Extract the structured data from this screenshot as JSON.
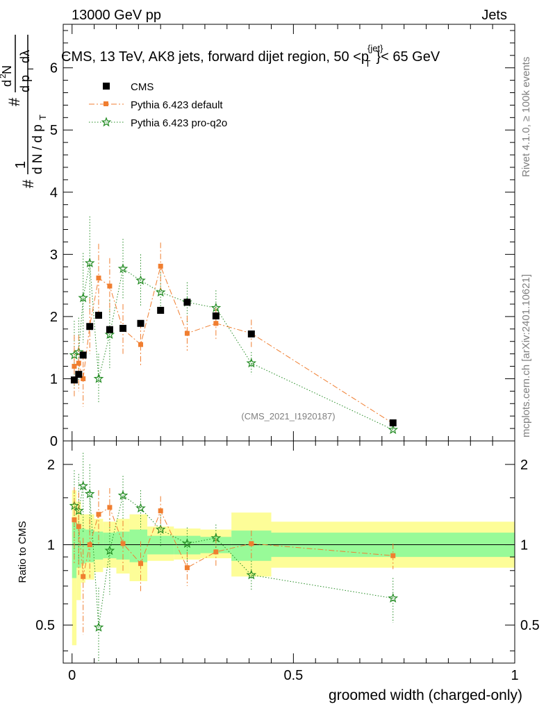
{
  "header": {
    "energy_label": "13000 GeV pp",
    "category_label": "Jets"
  },
  "side_text": {
    "rivet": "Rivet 4.1.0, ≥ 100k events",
    "mcplots": "mcplots.cern.ch [arXiv:2401.10621]"
  },
  "colors": {
    "cms": "#000000",
    "pythia_default": "#f07e30",
    "pythia_proq2o": "#228b22",
    "band_inner": "#98fa98",
    "band_outer": "#fdfd98"
  },
  "chart_data": [
    {
      "type": "scatter",
      "panel": "main",
      "title": "CMS, 13 TeV, AK8 jets, forward dijet region, 50 <p_T^{jet}< 65 GeV",
      "ylabel": "1/(dN/dp_T) d²N/(dp_T dλ)",
      "watermark": "(CMS_2021_I1920187)",
      "xlim": [
        -0.02,
        1.0
      ],
      "ylim": [
        0,
        6.7
      ],
      "yticks": [
        0,
        1,
        2,
        3,
        4,
        5,
        6
      ],
      "ytick_labels": [
        "0",
        "1",
        "2",
        "3",
        "4",
        "5",
        "6"
      ],
      "legend_position": "top-left",
      "x": [
        0.005,
        0.015,
        0.025,
        0.04,
        0.06,
        0.085,
        0.115,
        0.155,
        0.2,
        0.26,
        0.325,
        0.405,
        0.725
      ],
      "series": [
        {
          "name": "CMS",
          "marker": "square",
          "values": [
            0.98,
            1.07,
            1.38,
            1.84,
            2.02,
            1.79,
            1.81,
            1.89,
            2.1,
            2.23,
            2.01,
            1.72,
            0.29
          ],
          "errors": [
            0.03,
            0.03,
            0.03,
            0.04,
            0.04,
            0.03,
            0.03,
            0.03,
            0.03,
            0.03,
            0.03,
            0.03,
            0.01
          ]
        },
        {
          "name": "Pythia 6.423 default",
          "marker": "square-small",
          "line": "dashdot",
          "values": [
            1.2,
            1.25,
            1.0,
            1.85,
            2.62,
            2.49,
            1.8,
            1.55,
            2.81,
            1.73,
            1.89,
            1.73,
            0.28
          ],
          "errors": [
            0.5,
            0.45,
            0.45,
            0.45,
            0.55,
            0.45,
            0.4,
            0.35,
            0.38,
            0.28,
            0.25,
            0.22,
            0.03
          ]
        },
        {
          "name": "Pythia 6.423 pro-q2o",
          "marker": "star",
          "line": "dotted",
          "values": [
            1.38,
            1.43,
            2.3,
            2.86,
            1.0,
            1.71,
            2.77,
            2.58,
            2.39,
            2.23,
            2.14,
            1.25,
            0.18
          ],
          "errors": [
            0.55,
            0.55,
            0.72,
            0.75,
            0.4,
            0.55,
            0.48,
            0.42,
            0.33,
            0.32,
            0.28,
            0.18,
            0.03
          ]
        }
      ]
    },
    {
      "type": "scatter",
      "panel": "ratio",
      "ylabel": "Ratio to CMS",
      "xlabel": "groomed width (charged-only)",
      "xlim": [
        -0.02,
        1.0
      ],
      "ylim": [
        0.36,
        2.45
      ],
      "log_y": true,
      "xticks": [
        0,
        0.5,
        1
      ],
      "xtick_labels": [
        "0",
        "0.5",
        "1"
      ],
      "yticks": [
        0.5,
        1,
        2
      ],
      "ytick_labels": [
        "0.5",
        "1",
        "2"
      ],
      "bins": [
        {
          "lo": 0.0,
          "hi": 0.01,
          "inner": [
            0.75,
            1.25
          ],
          "outer": [
            0.42,
            1.6
          ]
        },
        {
          "lo": 0.01,
          "hi": 0.02,
          "inner": [
            0.82,
            1.2
          ],
          "outer": [
            0.62,
            1.45
          ]
        },
        {
          "lo": 0.02,
          "hi": 0.03,
          "inner": [
            0.85,
            1.15
          ],
          "outer": [
            0.72,
            1.3
          ]
        },
        {
          "lo": 0.03,
          "hi": 0.05,
          "inner": [
            0.86,
            1.14
          ],
          "outer": [
            0.74,
            1.3
          ]
        },
        {
          "lo": 0.05,
          "hi": 0.07,
          "inner": [
            0.88,
            1.12
          ],
          "outer": [
            0.79,
            1.25
          ]
        },
        {
          "lo": 0.07,
          "hi": 0.1,
          "inner": [
            0.89,
            1.11
          ],
          "outer": [
            0.82,
            1.22
          ]
        },
        {
          "lo": 0.1,
          "hi": 0.13,
          "inner": [
            0.88,
            1.12
          ],
          "outer": [
            0.78,
            1.25
          ]
        },
        {
          "lo": 0.13,
          "hi": 0.17,
          "inner": [
            0.86,
            1.14
          ],
          "outer": [
            0.73,
            1.3
          ]
        },
        {
          "lo": 0.17,
          "hi": 0.23,
          "inner": [
            0.92,
            1.08
          ],
          "outer": [
            0.87,
            1.17
          ]
        },
        {
          "lo": 0.23,
          "hi": 0.29,
          "inner": [
            0.92,
            1.08
          ],
          "outer": [
            0.88,
            1.15
          ]
        },
        {
          "lo": 0.29,
          "hi": 0.36,
          "inner": [
            0.93,
            1.07
          ],
          "outer": [
            0.89,
            1.14
          ]
        },
        {
          "lo": 0.36,
          "hi": 0.45,
          "inner": [
            0.87,
            1.13
          ],
          "outer": [
            0.76,
            1.32
          ]
        },
        {
          "lo": 0.45,
          "hi": 1.0,
          "inner": [
            0.9,
            1.11
          ],
          "outer": [
            0.82,
            1.22
          ]
        }
      ],
      "x": [
        0.005,
        0.015,
        0.025,
        0.04,
        0.06,
        0.085,
        0.115,
        0.155,
        0.2,
        0.26,
        0.325,
        0.405,
        0.725
      ],
      "series": [
        {
          "name": "Pythia 6.423 default",
          "values": [
            1.24,
            1.17,
            0.76,
            1.0,
            1.3,
            1.38,
            1.01,
            0.85,
            1.34,
            0.82,
            0.94,
            1.01,
            0.91
          ],
          "errors": [
            0.4,
            0.4,
            0.3,
            0.25,
            0.3,
            0.25,
            0.22,
            0.18,
            0.18,
            0.12,
            0.12,
            0.12,
            0.1
          ]
        },
        {
          "name": "Pythia 6.423 pro-q2o",
          "values": [
            1.4,
            1.34,
            1.66,
            1.55,
            0.49,
            0.95,
            1.53,
            1.37,
            1.14,
            1.01,
            1.06,
            0.77,
            0.63
          ],
          "errors": [
            0.5,
            0.5,
            0.55,
            0.45,
            0.2,
            0.3,
            0.28,
            0.23,
            0.16,
            0.15,
            0.13,
            0.1,
            0.12
          ]
        }
      ]
    }
  ]
}
